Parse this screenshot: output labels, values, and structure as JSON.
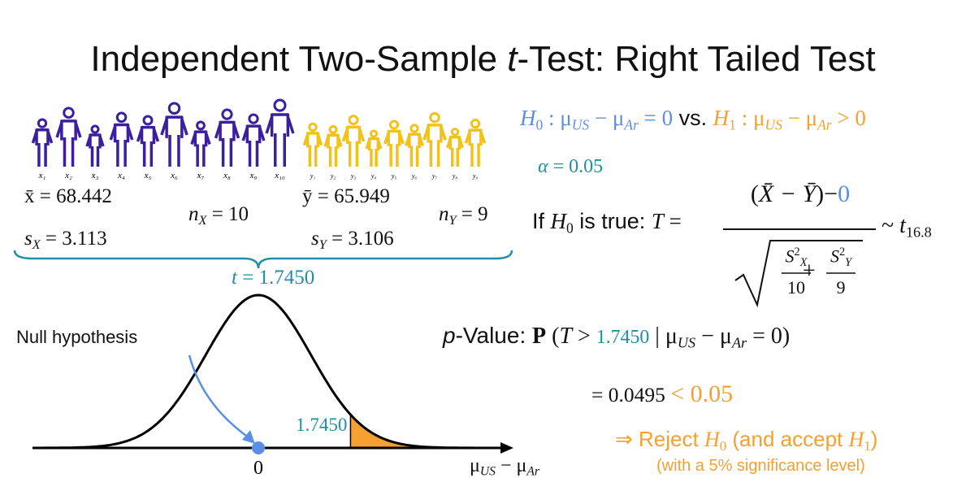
{
  "title": [
    {
      "t": "Independent Two-Sample "
    },
    {
      "t": "t",
      "f": "i"
    },
    {
      "t": "-Test: Right Tailed Test"
    }
  ],
  "sample_x": {
    "labels": [
      "x₁",
      "x₂",
      "x₃",
      "x₄",
      "x₅",
      "x₆",
      "x₇",
      "x₈",
      "x₉",
      "x₁₀"
    ],
    "color": "#3b1f9e"
  },
  "sample_y": {
    "labels": [
      "y₁",
      "y₂",
      "y₃",
      "y₄",
      "y₅",
      "y₆",
      "y₇",
      "y₈",
      "y₉"
    ],
    "color": "#f2c21b"
  },
  "stats": {
    "xbar": [
      {
        "t": "x̄ = 68.442"
      }
    ],
    "sx": [
      {
        "t": "s",
        "f": "i"
      },
      {
        "t": "X",
        "f": "i sub"
      },
      {
        "t": " = 3.113"
      }
    ],
    "nx": [
      {
        "t": "n",
        "f": "i"
      },
      {
        "t": "X",
        "f": "i sub"
      },
      {
        "t": " = 10"
      }
    ],
    "ybar": [
      {
        "t": "ȳ = 65.949"
      }
    ],
    "sy": [
      {
        "t": "s",
        "f": "i"
      },
      {
        "t": "Y",
        "f": "i sub"
      },
      {
        "t": " = 3.106"
      }
    ],
    "ny": [
      {
        "t": "n",
        "f": "i"
      },
      {
        "t": "Y",
        "f": "i sub"
      },
      {
        "t": " = 9"
      }
    ]
  },
  "brace_color": "#1f8fa3",
  "t_stat": {
    "color": "#1f8fa3",
    "parts": [
      {
        "t": "t",
        "f": "i"
      },
      {
        "t": " = 1.7450"
      }
    ]
  },
  "hypotheses": [
    {
      "t": "H",
      "f": "i",
      "c": "#5b8fe6"
    },
    {
      "t": "0",
      "f": "sub",
      "c": "#5b8fe6"
    },
    {
      "t": " : μ",
      "c": "#5b8fe6"
    },
    {
      "t": "US",
      "f": "i sub",
      "c": "#5b8fe6"
    },
    {
      "t": " − μ",
      "c": "#5b8fe6"
    },
    {
      "t": "Ar",
      "f": "i sub",
      "c": "#5b8fe6"
    },
    {
      "t": " = 0",
      "c": "#5b8fe6"
    },
    {
      "t": " vs. ",
      "f": "sans"
    },
    {
      "t": "H",
      "f": "i",
      "c": "#f5a030"
    },
    {
      "t": "1",
      "f": "sub",
      "c": "#f5a030"
    },
    {
      "t": " : μ",
      "c": "#f5a030"
    },
    {
      "t": "US",
      "f": "i sub",
      "c": "#f5a030"
    },
    {
      "t": " − μ",
      "c": "#f5a030"
    },
    {
      "t": "Ar",
      "f": "i sub",
      "c": "#f5a030"
    },
    {
      "t": " > 0",
      "c": "#f5a030"
    }
  ],
  "alpha": {
    "color": "#1f8fa3",
    "parts": [
      {
        "t": "α",
        "f": "i"
      },
      {
        "t": " = 0.05"
      }
    ]
  },
  "statistic": {
    "lead": [
      {
        "t": "If ",
        "f": "sans"
      },
      {
        "t": "H",
        "f": "i"
      },
      {
        "t": "0",
        "f": "sub"
      },
      {
        "t": " is true: ",
        "f": "sans"
      },
      {
        "t": "T",
        "f": "i"
      },
      {
        "t": " ="
      }
    ],
    "numerator": [
      {
        "t": "("
      },
      {
        "t": "X̄ − Ȳ",
        "f": "i"
      },
      {
        "t": ")−"
      },
      {
        "t": "0",
        "c": "#5b8fe6"
      }
    ],
    "term1_num": [
      {
        "t": "S",
        "f": "i"
      },
      {
        "t": "2",
        "f": "sup"
      },
      {
        "t": "X",
        "f": "i sub"
      }
    ],
    "term1_den": [
      {
        "t": "10"
      }
    ],
    "plus": [
      {
        "t": "+"
      }
    ],
    "term2_num": [
      {
        "t": "S",
        "f": "i"
      },
      {
        "t": "2",
        "f": "sup"
      },
      {
        "t": "Y",
        "f": "i sub"
      }
    ],
    "term2_den": [
      {
        "t": "9"
      }
    ],
    "dist": [
      {
        "t": "~ "
      },
      {
        "t": "t",
        "f": "i"
      },
      {
        "t": "16.8",
        "f": "sub"
      }
    ]
  },
  "p_value": [
    {
      "t": "p",
      "f": "i sans"
    },
    {
      "t": "-Value:  ",
      "f": "sans"
    },
    {
      "t": "P",
      "f": "b"
    },
    {
      "t": " ("
    },
    {
      "t": "T",
      "f": "i"
    },
    {
      "t": " > "
    },
    {
      "t": "1.7450",
      "c": "#1f8fa3",
      "f": "small"
    },
    {
      "t": "  | μ"
    },
    {
      "t": "US",
      "f": "i sub"
    },
    {
      "t": " − μ"
    },
    {
      "t": "Ar",
      "f": "i sub"
    },
    {
      "t": " = 0)"
    }
  ],
  "p_result": [
    {
      "t": "= 0.0495 ",
      "f": "small"
    },
    {
      "t": " < 0.05",
      "c": "#f5a030"
    }
  ],
  "decision": {
    "color": "#f5a030",
    "parts": [
      {
        "t": "⇒ Reject ",
        "f": "sans"
      },
      {
        "t": "H",
        "f": "i"
      },
      {
        "t": "0",
        "f": "sub"
      },
      {
        "t": " (and accept ",
        "f": "sans"
      },
      {
        "t": "H",
        "f": "i"
      },
      {
        "t": "1",
        "f": "sub"
      },
      {
        "t": ")",
        "f": "sans"
      }
    ]
  },
  "note": {
    "color": "#f5a030",
    "parts": [
      {
        "t": "(with a 5% significance level)",
        "f": "sans"
      }
    ]
  },
  "null_label": "Null hypothesis",
  "curve": {
    "xticks": [
      0
    ],
    "critical": {
      "value": 1.745,
      "label": "1.7450"
    },
    "critical_color": "#1f8fa3",
    "fill_color": "#f5a030",
    "line_color": "#000000",
    "marker_color": "#5b8fe6",
    "axis_label": [
      {
        "t": "μ"
      },
      {
        "t": "US",
        "f": "i sub"
      },
      {
        "t": " − μ"
      },
      {
        "t": "Ar",
        "f": "i sub"
      }
    ]
  }
}
